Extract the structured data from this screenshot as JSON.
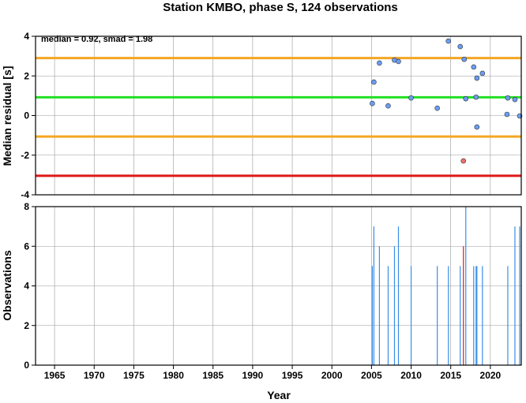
{
  "chart_data": [
    {
      "type": "scatter",
      "title": "Station KMBO, phase S, 124 observations",
      "ylabel": "Median residual [s]",
      "annotation": "median = 0.92, smad = 1.98",
      "xlim": [
        1962.6,
        2023.9
      ],
      "ylim": [
        -4,
        4
      ],
      "yticks": [
        -4,
        -2,
        0,
        2,
        4
      ],
      "xticks": [
        1965,
        1970,
        1975,
        1980,
        1985,
        1990,
        1995,
        2000,
        2005,
        2010,
        2015,
        2020
      ],
      "grid": true,
      "hlines": [
        {
          "value": 2.9,
          "color": "#f5a623"
        },
        {
          "value": 0.92,
          "color": "#22e022"
        },
        {
          "value": -1.06,
          "color": "#f5a623"
        },
        {
          "value": -3.04,
          "color": "#e01818"
        }
      ],
      "series": [
        {
          "color": "#6a9ef5",
          "x": [
            2005.1,
            2005.3,
            2006.0,
            2007.1,
            2007.9,
            2008.4,
            2010.0,
            2013.3,
            2014.7,
            2016.2,
            2016.7,
            2016.9,
            2017.9,
            2018.2,
            2018.3,
            2018.3,
            2019.0,
            2022.2,
            2022.1,
            2023.1,
            2023.7
          ],
          "values": [
            0.61,
            1.69,
            2.65,
            0.49,
            2.8,
            2.73,
            0.89,
            0.37,
            3.76,
            3.48,
            2.84,
            0.85,
            2.45,
            0.93,
            1.89,
            -0.58,
            2.13,
            0.89,
            0.06,
            0.81,
            -0.02
          ]
        },
        {
          "color": "#f07070",
          "x": [
            2016.6
          ],
          "values": [
            -2.29
          ]
        }
      ]
    },
    {
      "type": "bar",
      "ylabel": "Observations",
      "xlabel": "Year",
      "xlim": [
        1962.6,
        2023.9
      ],
      "ylim": [
        0,
        8
      ],
      "yticks": [
        0,
        2,
        4,
        6,
        8
      ],
      "xticks": [
        1965,
        1970,
        1975,
        1980,
        1985,
        1990,
        1995,
        2000,
        2005,
        2010,
        2015,
        2020
      ],
      "grid": true,
      "series": [
        {
          "color": "#3a8ee6",
          "x": [
            2005.1,
            2005.3,
            2006.0,
            2007.1,
            2007.9,
            2008.4,
            2010.0,
            2013.3,
            2014.7,
            2016.2,
            2016.9,
            2017.9,
            2018.2,
            2018.3,
            2019.0,
            2022.2,
            2023.1,
            2023.7
          ],
          "values": [
            5,
            7,
            6,
            5,
            6,
            7,
            5,
            5,
            5,
            5,
            8,
            5,
            5,
            5,
            5,
            5,
            7,
            7
          ]
        },
        {
          "color": "#e01818",
          "x": [
            2016.6
          ],
          "values": [
            6
          ]
        }
      ]
    }
  ]
}
